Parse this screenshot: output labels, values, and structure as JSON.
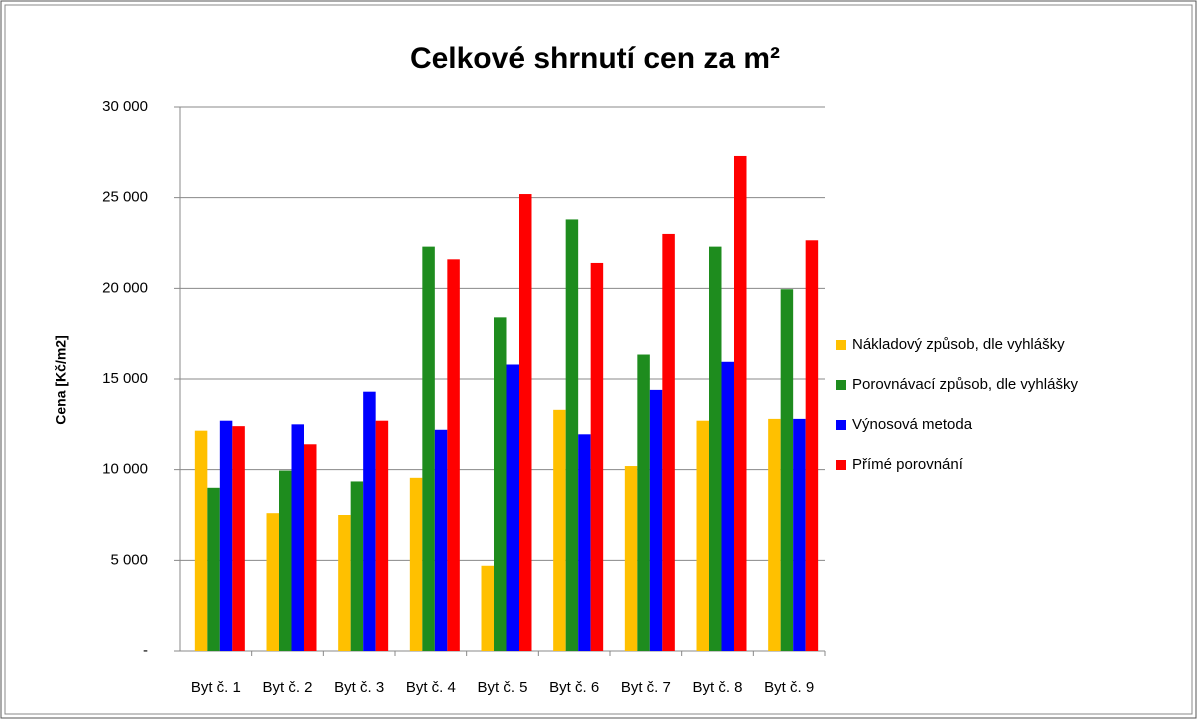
{
  "chart_data": {
    "type": "bar",
    "title": "Celkové shrnutí cen za m²",
    "y_label": "Cena [Kč/m2]",
    "categories": [
      "Byt č. 1",
      "Byt č. 2",
      "Byt č. 3",
      "Byt č. 4",
      "Byt č. 5",
      "Byt č. 6",
      "Byt č. 7",
      "Byt č. 8",
      "Byt č. 9"
    ],
    "series": [
      {
        "name": "Nákladový způsob, dle vyhlášky",
        "color": "#ffc000",
        "values": [
          12150,
          7600,
          7500,
          9550,
          4700,
          13300,
          10200,
          12700,
          12800
        ]
      },
      {
        "name": "Porovnávací způsob, dle vyhlášky",
        "color": "#1e8c1e",
        "values": [
          9000,
          9950,
          9350,
          22300,
          18400,
          23800,
          16350,
          22300,
          19950
        ]
      },
      {
        "name": "Výnosová metoda",
        "color": "#0000ff",
        "values": [
          12700,
          12500,
          14300,
          12200,
          15800,
          11950,
          14400,
          15950,
          12800
        ]
      },
      {
        "name": "Přímé porovnání",
        "color": "#ff0000",
        "values": [
          12400,
          11400,
          12700,
          21600,
          25200,
          21400,
          23000,
          27300,
          22650
        ]
      }
    ],
    "ylim": [
      0,
      30000
    ],
    "yticks": [
      {
        "value": 0,
        "label": "-"
      },
      {
        "value": 5000,
        "label": "5 000"
      },
      {
        "value": 10000,
        "label": "10 000"
      },
      {
        "value": 15000,
        "label": "15 000"
      },
      {
        "value": 20000,
        "label": "20 000"
      },
      {
        "value": 25000,
        "label": "25 000"
      },
      {
        "value": 30000,
        "label": "30 000"
      }
    ],
    "grid": true,
    "legend": "right"
  }
}
